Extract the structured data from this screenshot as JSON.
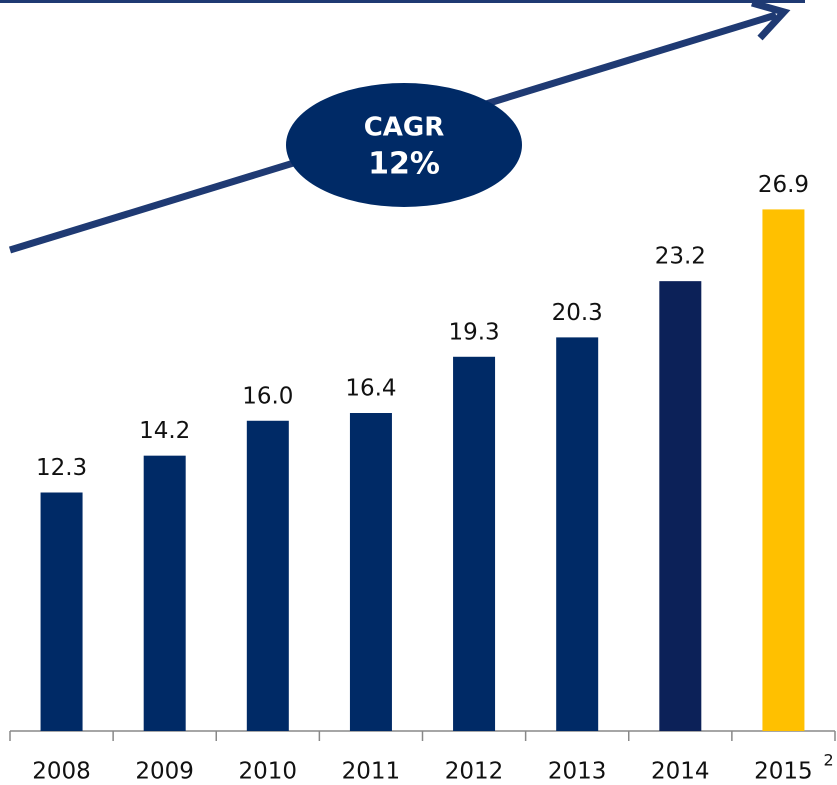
{
  "chart_data": {
    "type": "bar",
    "categories": [
      "2008",
      "2009",
      "2010",
      "2011",
      "2012",
      "2013",
      "2014",
      "2015"
    ],
    "category_superscripts": [
      null,
      null,
      null,
      null,
      null,
      null,
      null,
      "2"
    ],
    "values": [
      12.3,
      14.2,
      16.0,
      16.4,
      19.3,
      20.3,
      23.2,
      26.9
    ],
    "value_labels": [
      "12.3",
      "14.2",
      "16.0",
      "16.4",
      "19.3",
      "20.3",
      "23.2",
      "26.9"
    ],
    "colors": [
      "#002a66",
      "#002a66",
      "#002a66",
      "#002a66",
      "#002a66",
      "#002a66",
      "#0c2158",
      "#ffc000"
    ],
    "ylim": [
      0,
      37.7
    ],
    "annotation": {
      "lines": [
        "CAGR",
        "12%"
      ]
    }
  }
}
